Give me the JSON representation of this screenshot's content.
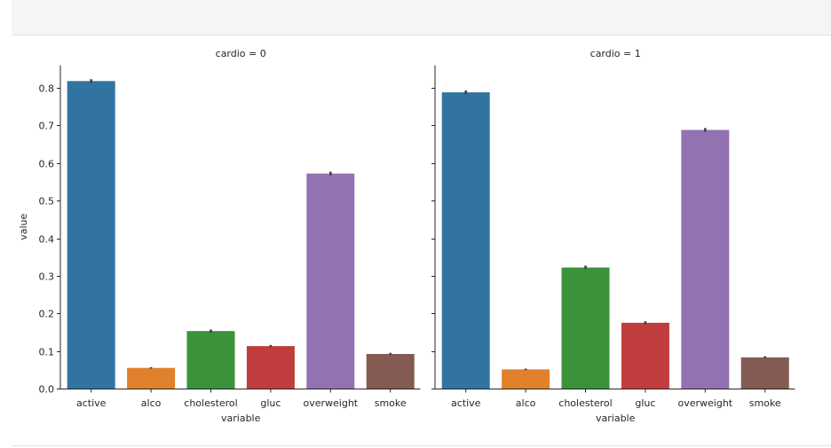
{
  "chart_data": {
    "type": "bar",
    "facet_variable": "cardio",
    "categories": [
      "active",
      "alco",
      "cholesterol",
      "gluc",
      "overweight",
      "smoke"
    ],
    "colors": [
      "#3274a1",
      "#e1812c",
      "#3a923a",
      "#c03d3e",
      "#9372b2",
      "#845b53"
    ],
    "xlabel": "variable",
    "ylabel": "value",
    "ylim": [
      0,
      0.86
    ],
    "yticks": [
      0.0,
      0.1,
      0.2,
      0.3,
      0.4,
      0.5,
      0.6,
      0.7,
      0.8
    ],
    "ytick_labels": [
      "0.0",
      "0.1",
      "0.2",
      "0.3",
      "0.4",
      "0.5",
      "0.6",
      "0.7",
      "0.8"
    ],
    "grid": false,
    "panels": [
      {
        "title": "cardio = 0",
        "values": [
          0.818,
          0.055,
          0.153,
          0.113,
          0.572,
          0.092
        ],
        "ci": [
          [
            0.813,
            0.823
          ],
          [
            0.053,
            0.057
          ],
          [
            0.149,
            0.157
          ],
          [
            0.11,
            0.116
          ],
          [
            0.567,
            0.577
          ],
          [
            0.089,
            0.095
          ]
        ]
      },
      {
        "title": "cardio = 1",
        "values": [
          0.788,
          0.051,
          0.322,
          0.175,
          0.688,
          0.083
        ],
        "ci": [
          [
            0.783,
            0.793
          ],
          [
            0.049,
            0.053
          ],
          [
            0.318,
            0.327
          ],
          [
            0.171,
            0.179
          ],
          [
            0.683,
            0.693
          ],
          [
            0.08,
            0.086
          ]
        ]
      }
    ]
  }
}
